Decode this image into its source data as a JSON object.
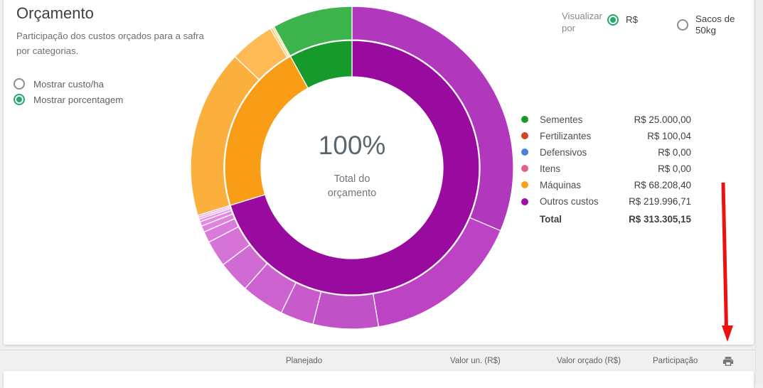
{
  "header": {
    "title": "Orçamento",
    "subtitle_line1": "Participação dos custos orçados para a safra",
    "subtitle_line2": "por categorias."
  },
  "display_options": {
    "options": [
      {
        "label": "Mostrar custo/ha",
        "selected": false
      },
      {
        "label": "Mostrar porcentagem",
        "selected": true
      }
    ]
  },
  "view_by": {
    "label": "Visualizar por",
    "options": [
      {
        "label": "R$",
        "selected": true
      },
      {
        "label": "Sacos de 50kg",
        "selected": false
      }
    ]
  },
  "chart_data": {
    "type": "donut",
    "center_percent": "100%",
    "center_label_line1": "Total do",
    "center_label_line2": "orçamento",
    "categories": [
      {
        "name": "Sementes",
        "display": "R$ 25.000,00",
        "value": 25000.0,
        "percent": 7.98,
        "color": "#189a2b"
      },
      {
        "name": "Fertilizantes",
        "display": "R$ 100,04",
        "value": 100.04,
        "percent": 0.03,
        "color": "#d8431c"
      },
      {
        "name": "Defensivos",
        "display": "R$ 0,00",
        "value": 0,
        "percent": 0,
        "color": "#4a80e0"
      },
      {
        "name": "Itens",
        "display": "R$ 0,00",
        "value": 0,
        "percent": 0,
        "color": "#e2608c"
      },
      {
        "name": "Máquinas",
        "display": "R$ 68.208,40",
        "value": 68208.4,
        "percent": 21.77,
        "color": "#fba019"
      },
      {
        "name": "Outros custos",
        "display": "R$ 219.996,71",
        "value": 219996.71,
        "percent": 70.22,
        "color": "#a00ca8"
      }
    ],
    "total": {
      "label": "Total",
      "display": "R$ 313.305,15",
      "value": 313305.15
    },
    "inner_ring": [
      {
        "category": "Outros custos",
        "start": 0,
        "end": 252.8,
        "color": "#990b9e"
      },
      {
        "category": "Máquinas",
        "start": 252.8,
        "end": 331.1,
        "color": "#f99d16"
      },
      {
        "category": "Sementes",
        "start": 331.1,
        "end": 360,
        "color": "#169a2c"
      }
    ],
    "outer_ring": [
      {
        "category": "Outros custos",
        "start": 0,
        "end": 113,
        "color": "#b138bd"
      },
      {
        "category": "Outros custos",
        "start": 113,
        "end": 170.5,
        "color": "#bc43c4"
      },
      {
        "category": "Outros custos",
        "start": 170.5,
        "end": 194,
        "color": "#c151c7"
      },
      {
        "category": "Outros custos",
        "start": 194,
        "end": 206,
        "color": "#c75bcc"
      },
      {
        "category": "Outros custos",
        "start": 206,
        "end": 221.5,
        "color": "#cc63d0"
      },
      {
        "category": "Outros custos",
        "start": 221.5,
        "end": 233,
        "color": "#d16bd4"
      },
      {
        "category": "Outros custos",
        "start": 233,
        "end": 242.5,
        "color": "#d573d7"
      },
      {
        "category": "Outros custos",
        "start": 242.5,
        "end": 246.5,
        "color": "#da7bdb"
      },
      {
        "category": "Outros custos",
        "start": 246.5,
        "end": 248.8,
        "color": "#df83de"
      },
      {
        "category": "Outros custos",
        "start": 248.8,
        "end": 250.4,
        "color": "#e38ae2"
      },
      {
        "category": "Outros custos",
        "start": 250.4,
        "end": 251.4,
        "color": "#e791e5"
      },
      {
        "category": "Outros custos",
        "start": 251.4,
        "end": 252.1,
        "color": "#eb97e8"
      },
      {
        "category": "Outros custos",
        "start": 252.1,
        "end": 252.8,
        "color": "#ef9eec"
      },
      {
        "category": "Máquinas",
        "start": 252.8,
        "end": 313.5,
        "color": "#fbaf3d"
      },
      {
        "category": "Máquinas",
        "start": 313.5,
        "end": 329.6,
        "color": "#fdba55"
      },
      {
        "category": "Máquinas",
        "start": 329.6,
        "end": 330.4,
        "color": "#fec668"
      },
      {
        "category": "Máquinas",
        "start": 330.4,
        "end": 331.1,
        "color": "#ffd07a"
      },
      {
        "category": "Sementes",
        "start": 331.1,
        "end": 360,
        "color": "#3cb44b"
      }
    ]
  },
  "table_header": {
    "columns": [
      "Planejado",
      "Valor un. (R$)",
      "Valor orçado (R$)",
      "Participação"
    ]
  },
  "annotation": {
    "color": "#ee1111"
  },
  "colors": {
    "radio_selected": "#23aa6d",
    "page_background": "#f0f0f0",
    "card_background": "#ffffff"
  }
}
